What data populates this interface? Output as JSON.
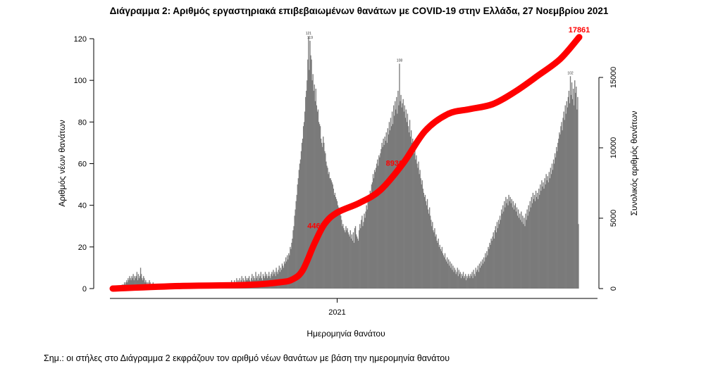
{
  "chart_data": {
    "type": "bar",
    "title": "Διάγραμμα 2: Αριθμός εργαστηριακά επιβεβαιωμένων θανάτων με COVID-19 στην Ελλάδα, 27 Νοεμβρίου 2021",
    "xlabel": "Ημερομηνία θανάτου",
    "ylabel": "Αριθμός νέων θανάτων",
    "y2label": "Συνολικός αριθμός θανάτων",
    "ylim": [
      0,
      120
    ],
    "y2lim": [
      0,
      18000
    ],
    "yticks": [
      "0",
      "20",
      "40",
      "60",
      "80",
      "100",
      "120"
    ],
    "y2ticks": [
      "0",
      "5000",
      "10000",
      "15000"
    ],
    "xticks": [
      "2021"
    ],
    "grid": false,
    "colors": {
      "bars": "#7a7a7a",
      "cumulative": "#ff0000"
    },
    "daily_deaths_by_month": [
      {
        "month": "2020-03",
        "values": [
          0,
          0,
          0,
          0,
          0,
          0,
          0,
          0,
          0,
          0,
          1,
          0,
          1,
          2,
          1,
          2,
          3,
          2,
          3,
          4,
          3,
          5,
          4,
          6,
          5,
          4,
          6,
          5,
          7,
          4,
          6
        ]
      },
      {
        "month": "2020-04",
        "values": [
          5,
          6,
          8,
          4,
          7,
          5,
          6,
          10,
          7,
          5,
          4,
          6,
          5,
          3,
          4,
          3,
          2,
          3,
          2,
          4,
          3,
          2,
          1,
          2,
          3,
          1,
          2,
          1,
          2,
          1
        ]
      },
      {
        "month": "2020-05",
        "values": [
          1,
          2,
          1,
          0,
          2,
          1,
          1,
          0,
          1,
          2,
          1,
          0,
          1,
          1,
          0,
          2,
          1,
          0,
          1,
          1,
          0,
          1,
          0,
          1,
          2,
          0,
          1,
          0,
          1,
          0,
          1
        ]
      },
      {
        "month": "2020-06",
        "values": [
          0,
          1,
          0,
          1,
          0,
          0,
          1,
          0,
          1,
          0,
          1,
          0,
          0,
          1,
          0,
          1,
          2,
          0,
          1,
          0,
          0,
          1,
          0,
          1,
          0,
          1,
          0,
          1,
          1,
          0
        ]
      },
      {
        "month": "2020-07",
        "values": [
          1,
          0,
          1,
          0,
          1,
          0,
          0,
          1,
          2,
          0,
          1,
          1,
          0,
          1,
          2,
          0,
          1,
          1,
          0,
          2,
          1,
          0,
          1,
          2,
          0,
          1,
          2,
          1,
          3,
          1,
          2
        ]
      },
      {
        "month": "2020-08",
        "values": [
          2,
          1,
          3,
          2,
          1,
          2,
          3,
          2,
          1,
          4,
          2,
          3,
          2,
          4,
          3,
          2,
          5,
          3,
          4,
          2,
          5,
          3,
          4,
          6,
          3,
          5,
          4,
          3,
          6,
          4,
          5
        ]
      },
      {
        "month": "2020-09",
        "values": [
          4,
          5,
          6,
          4,
          3,
          5,
          7,
          4,
          6,
          5,
          4,
          8,
          5,
          6,
          4,
          7,
          5,
          6,
          8,
          5,
          4,
          7,
          6,
          5,
          8,
          6,
          7,
          5,
          6,
          8
        ]
      },
      {
        "month": "2020-10",
        "values": [
          6,
          5,
          7,
          8,
          6,
          9,
          7,
          8,
          6,
          10,
          8,
          7,
          9,
          11,
          8,
          10,
          9,
          12,
          11,
          10,
          13,
          12,
          15,
          13,
          16,
          14,
          17,
          16,
          20,
          19,
          22
        ]
      },
      {
        "month": "2020-11",
        "values": [
          24,
          28,
          30,
          35,
          38,
          42,
          45,
          50,
          53,
          57,
          60,
          62,
          66,
          70,
          72,
          78,
          80,
          85,
          92,
          95,
          100,
          110,
          121,
          105,
          119,
          112,
          110,
          100,
          103,
          95
        ]
      },
      {
        "month": "2020-12",
        "values": [
          98,
          90,
          96,
          88,
          85,
          86,
          80,
          79,
          78,
          72,
          70,
          68,
          73,
          70,
          66,
          65,
          61,
          59,
          58,
          55,
          56,
          53,
          53,
          52,
          51,
          50,
          48,
          45,
          46,
          44,
          43
        ]
      },
      {
        "month": "2021-01",
        "values": [
          42,
          40,
          39,
          37,
          36,
          35,
          33,
          30,
          31,
          29,
          28,
          27,
          30,
          28,
          29,
          27,
          26,
          25,
          28,
          24,
          26,
          23,
          27,
          22,
          29,
          30,
          26,
          25,
          24,
          23,
          28
        ]
      },
      {
        "month": "2021-02",
        "values": [
          31,
          29,
          33,
          35,
          30,
          32,
          36,
          34,
          37,
          40,
          38,
          42,
          45,
          43,
          47,
          46,
          50,
          51,
          55,
          53,
          57,
          56,
          58,
          60,
          62,
          59,
          64,
          63
        ]
      },
      {
        "month": "2021-03",
        "values": [
          65,
          67,
          70,
          68,
          72,
          69,
          73,
          71,
          75,
          70,
          77,
          74,
          80,
          76,
          82,
          78,
          85,
          79,
          88,
          83,
          90,
          86,
          92,
          84,
          95,
          88,
          108,
          90,
          93,
          87,
          89
        ]
      },
      {
        "month": "2021-04",
        "values": [
          91,
          85,
          88,
          82,
          86,
          80,
          84,
          78,
          75,
          81,
          73,
          76,
          70,
          72,
          68,
          65,
          69,
          62,
          64,
          60,
          58,
          61,
          55,
          57,
          53,
          50,
          52,
          48,
          46,
          44
        ]
      },
      {
        "month": "2021-05",
        "values": [
          45,
          42,
          40,
          43,
          38,
          36,
          39,
          35,
          33,
          30,
          32,
          28,
          27,
          29,
          25,
          26,
          23,
          22,
          24,
          20,
          21,
          19,
          18,
          20,
          17,
          16,
          15,
          17,
          14,
          13,
          15
        ]
      },
      {
        "month": "2021-06",
        "values": [
          12,
          14,
          11,
          13,
          10,
          12,
          9,
          11,
          8,
          10,
          9,
          7,
          8,
          10,
          6,
          9,
          7,
          8,
          5,
          7,
          6,
          8,
          5,
          6,
          7,
          4,
          6,
          5,
          7,
          6
        ]
      },
      {
        "month": "2021-07",
        "values": [
          5,
          7,
          6,
          8,
          5,
          9,
          7,
          6,
          10,
          8,
          9,
          11,
          8,
          12,
          10,
          13,
          11,
          14,
          12,
          15,
          13,
          17,
          15,
          18,
          16,
          20,
          19,
          22,
          21,
          24,
          23
        ]
      },
      {
        "month": "2021-08",
        "values": [
          25,
          27,
          24,
          28,
          30,
          27,
          32,
          29,
          33,
          31,
          35,
          33,
          38,
          36,
          40,
          37,
          42,
          39,
          44,
          41,
          43,
          40,
          45,
          42,
          44,
          41,
          43,
          39,
          42,
          38,
          40
        ]
      },
      {
        "month": "2021-09",
        "values": [
          41,
          37,
          39,
          35,
          38,
          34,
          36,
          33,
          37,
          32,
          35,
          31,
          34,
          30,
          36,
          33,
          38,
          35,
          40,
          37,
          42,
          39,
          44,
          41,
          46,
          43,
          45,
          42,
          47,
          44
        ]
      },
      {
        "month": "2021-10",
        "values": [
          46,
          43,
          48,
          45,
          50,
          47,
          52,
          49,
          51,
          48,
          53,
          50,
          55,
          52,
          54,
          51,
          56,
          53,
          58,
          55,
          60,
          57,
          62,
          60,
          65,
          63,
          68,
          66,
          70,
          72,
          75
        ]
      },
      {
        "month": "2021-11",
        "values": [
          74,
          78,
          80,
          76,
          82,
          85,
          81,
          88,
          84,
          90,
          87,
          92,
          95,
          89,
          102,
          93,
          99,
          91,
          96,
          88,
          100,
          94,
          97,
          86,
          92,
          31,
          0
        ]
      }
    ],
    "cumulative": [
      {
        "date": "2020-03-01",
        "value": 0
      },
      {
        "date": "2020-06-01",
        "value": 180
      },
      {
        "date": "2020-09-01",
        "value": 260
      },
      {
        "date": "2020-10-15",
        "value": 450
      },
      {
        "date": "2020-11-01",
        "value": 650
      },
      {
        "date": "2020-11-15",
        "value": 1300
      },
      {
        "date": "2020-12-01",
        "value": 3200
      },
      {
        "date": "2020-12-15",
        "value": 4600
      },
      {
        "date": "2021-01-01",
        "value": 5400
      },
      {
        "date": "2021-02-01",
        "value": 6100
      },
      {
        "date": "2021-03-01",
        "value": 7000
      },
      {
        "date": "2021-04-01",
        "value": 8900
      },
      {
        "date": "2021-05-01",
        "value": 11200
      },
      {
        "date": "2021-06-01",
        "value": 12400
      },
      {
        "date": "2021-07-01",
        "value": 12750
      },
      {
        "date": "2021-08-01",
        "value": 13100
      },
      {
        "date": "2021-09-01",
        "value": 14000
      },
      {
        "date": "2021-10-01",
        "value": 15100
      },
      {
        "date": "2021-11-01",
        "value": 16300
      },
      {
        "date": "2021-11-27",
        "value": 17861
      }
    ],
    "cumulative_labels": [
      {
        "date": "2020-12-13",
        "value": 4465,
        "text": "4465"
      },
      {
        "date": "2021-03-30",
        "value": 8930,
        "text": "8930"
      },
      {
        "date": "2021-11-27",
        "value": 17861,
        "text": "17861"
      }
    ],
    "peak_labels": [
      {
        "date": "2020-11-23",
        "text": "121"
      },
      {
        "date": "2020-11-25",
        "text": "119"
      },
      {
        "date": "2021-03-27",
        "text": "108"
      },
      {
        "date": "2021-11-15",
        "text": "102"
      }
    ]
  },
  "note": "Σημ.: οι στήλες στο Διάγραμμα 2 εκφράζουν τον αριθμό νέων θανάτων με βάση την ημερομηνία θανάτου"
}
